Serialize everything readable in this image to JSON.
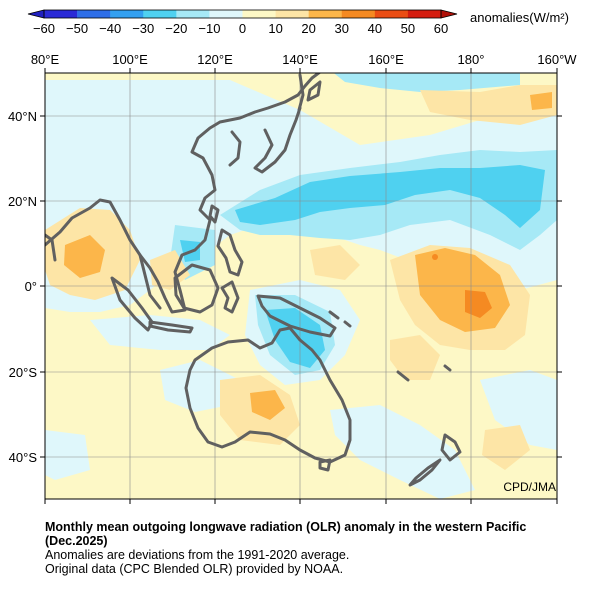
{
  "colorbar": {
    "ticks": [
      "−60",
      "−50",
      "−40",
      "−30",
      "−20",
      "−10",
      "0",
      "10",
      "20",
      "30",
      "40",
      "50",
      "60"
    ],
    "colors": [
      "#2a2ad6",
      "#2e6ee8",
      "#33a0f0",
      "#4fd1f0",
      "#a6e9f6",
      "#dff7fb",
      "#fdf8c6",
      "#fde5a6",
      "#fcb64a",
      "#f58a22",
      "#ea4d14",
      "#d41d10"
    ],
    "unit": "anomalies(W/m²)"
  },
  "map": {
    "lon_labels": [
      "80°E",
      "100°E",
      "120°E",
      "140°E",
      "160°E",
      "180°",
      "160°W"
    ],
    "lat_labels": [
      "40°N",
      "20°N",
      "0°",
      "20°S",
      "40°S"
    ],
    "background_color": "#fdf8c6",
    "coast_color": "#606060"
  },
  "credit": "CPD/JMA",
  "caption": {
    "title": "Monthly mean outgoing longwave radiation (OLR) anomaly in the western Pacific (Dec.2025)",
    "line1": "Anomalies are deviations from the 1991-2020 average.",
    "line2": "Original data (CPC Blended OLR) provided by NOAA."
  }
}
